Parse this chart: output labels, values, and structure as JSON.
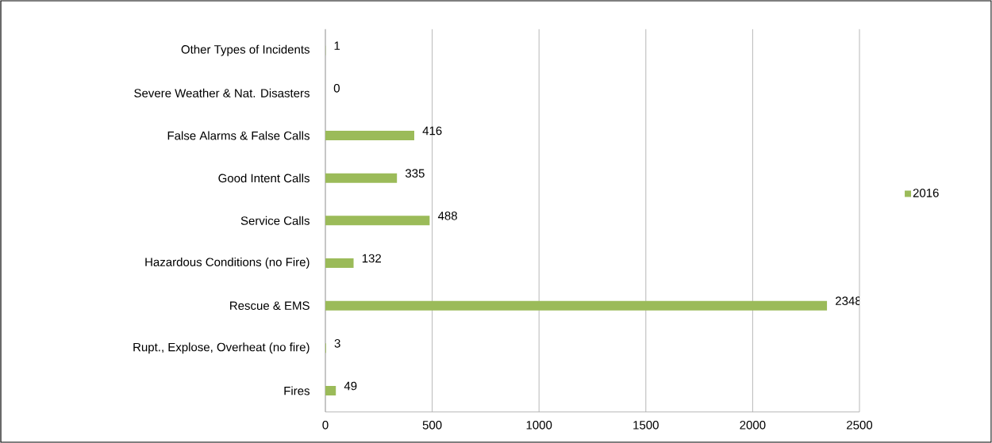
{
  "chart_data": {
    "type": "bar",
    "orientation": "horizontal",
    "categories": [
      "Other Types of Incidents",
      "Severe Weather & Nat. Disasters",
      "False Alarms & False Calls",
      "Good Intent Calls",
      "Service Calls",
      "Hazardous Conditions (no Fire)",
      "Rescue & EMS",
      "Rupt., Explose, Overheat (no fire)",
      "Fires"
    ],
    "series": [
      {
        "name": "2016",
        "color": "#9bbb59",
        "values": [
          1,
          0,
          416,
          335,
          488,
          132,
          2348,
          3,
          49
        ]
      }
    ],
    "xlim": [
      0,
      2500
    ],
    "xticks": [
      0,
      500,
      1000,
      1500,
      2000,
      2500
    ],
    "grid": "x",
    "legend": "right",
    "data_labels": true
  }
}
